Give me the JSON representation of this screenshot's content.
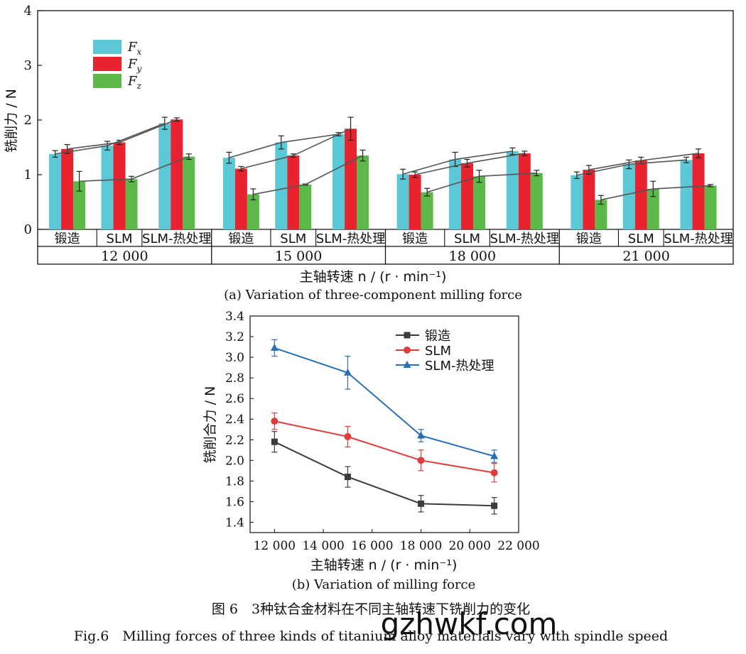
{
  "chart_data": [
    {
      "type": "bar",
      "title": "",
      "xlabel": "主轴转速 n / (r · min⁻¹)",
      "ylabel": "铣削力 / N",
      "ylim": [
        0,
        4
      ],
      "yticks": [
        "0",
        "1",
        "2",
        "3",
        "4"
      ],
      "legend_position": "top-left",
      "legend": [
        {
          "name": "F",
          "sub": "x",
          "color": "#5bc8d6"
        },
        {
          "name": "F",
          "sub": "y",
          "color": "#e8232f"
        },
        {
          "name": "F",
          "sub": "z",
          "color": "#5cb848"
        }
      ],
      "speed_groups": [
        "12 000",
        "15 000",
        "18 000",
        "21 000"
      ],
      "material_labels": [
        "锻造",
        "SLM",
        "SLM-热处理"
      ],
      "series": [
        {
          "name": "Fx",
          "values": [
            [
              1.38,
              1.53,
              1.94
            ],
            [
              1.31,
              1.59,
              1.74
            ],
            [
              1.01,
              1.28,
              1.43
            ],
            [
              0.99,
              1.19,
              1.27
            ]
          ],
          "errors": [
            [
              0.06,
              0.08,
              0.11
            ],
            [
              0.1,
              0.12,
              0.03
            ],
            [
              0.09,
              0.13,
              0.06
            ],
            [
              0.06,
              0.08,
              0.05
            ]
          ]
        },
        {
          "name": "Fy",
          "values": [
            [
              1.47,
              1.59,
              2.01
            ],
            [
              1.11,
              1.35,
              1.84
            ],
            [
              1.0,
              1.21,
              1.39
            ],
            [
              1.09,
              1.26,
              1.39
            ]
          ],
          "errors": [
            [
              0.08,
              0.04,
              0.03
            ],
            [
              0.04,
              0.03,
              0.21
            ],
            [
              0.05,
              0.07,
              0.04
            ],
            [
              0.08,
              0.06,
              0.08
            ]
          ]
        },
        {
          "name": "Fz",
          "values": [
            [
              0.88,
              0.92,
              1.33
            ],
            [
              0.64,
              0.82,
              1.35
            ],
            [
              0.68,
              0.97,
              1.03
            ],
            [
              0.54,
              0.74,
              0.8
            ]
          ],
          "errors": [
            [
              0.18,
              0.05,
              0.05
            ],
            [
              0.1,
              0.01,
              0.1
            ],
            [
              0.07,
              0.11,
              0.05
            ],
            [
              0.08,
              0.14,
              0.02
            ]
          ]
        }
      ],
      "caption": "(a) Variation of three-component milling force"
    },
    {
      "type": "line",
      "title": "",
      "xlabel": "主轴转速 n / (r · min⁻¹)",
      "ylabel": "铣削合力 / N",
      "x": [
        12000,
        15000,
        18000,
        21000
      ],
      "xlim": [
        11000,
        22000
      ],
      "xticks": [
        "12 000",
        "14 000",
        "16 000",
        "18 000",
        "20 000",
        "22 000"
      ],
      "ylim": [
        1.3,
        3.4
      ],
      "yticks": [
        "1.4",
        "1.6",
        "1.8",
        "2.0",
        "2.2",
        "2.4",
        "2.6",
        "2.8",
        "3.0",
        "3.2",
        "3.4"
      ],
      "legend_position": "top-right",
      "series": [
        {
          "name": "锻造",
          "color": "#3c3c3c",
          "marker": "square",
          "values": [
            2.18,
            1.84,
            1.58,
            1.56
          ],
          "errors": [
            0.1,
            0.1,
            0.08,
            0.08
          ]
        },
        {
          "name": "SLM",
          "color": "#e03c3c",
          "marker": "circle",
          "values": [
            2.38,
            2.23,
            2.0,
            1.88
          ],
          "errors": [
            0.08,
            0.1,
            0.1,
            0.09
          ]
        },
        {
          "name": "SLM-热处理",
          "color": "#2a6fb6",
          "marker": "triangle",
          "values": [
            3.09,
            2.85,
            2.24,
            2.04
          ],
          "errors": [
            0.08,
            0.16,
            0.06,
            0.06
          ]
        }
      ],
      "caption": "(b) Variation of milling force"
    }
  ],
  "figure_caption_cn": "图 6　3种钛合金材料在不同主轴转速下铣削力的变化",
  "figure_caption_en": "Fig.6　Milling forces of three kinds of titanium alloy materials vary with spindle speed",
  "watermark": "gzhwkf.com"
}
